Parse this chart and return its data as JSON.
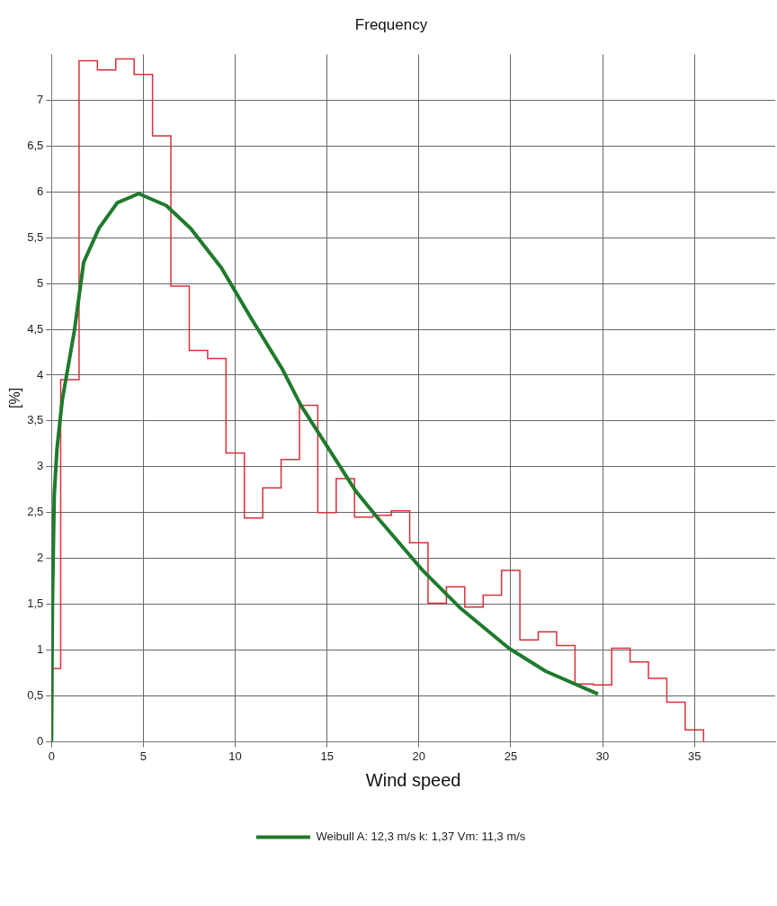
{
  "chart_data": {
    "type": "histogram",
    "title": "Frequency",
    "xlabel": "Wind speed",
    "ylabel": "[%]",
    "bins": [
      0,
      0.5,
      1.5,
      2.5,
      3.5,
      4.5,
      5.5,
      6.5,
      7.5,
      8.5,
      9.5,
      10.5,
      11.5,
      12.5,
      13.5,
      14.5,
      15.5,
      16.5,
      17.5,
      18.5,
      19.5,
      20.5,
      21.5,
      22.5,
      23.5,
      24.5,
      25.5,
      26.5,
      27.5,
      28.5,
      29.5,
      30.5,
      31.5,
      32.5,
      33.5,
      34.5,
      35.5
    ],
    "values": [
      0.8,
      3.95,
      7.43,
      7.33,
      7.45,
      7.28,
      6.61,
      4.97,
      4.27,
      4.18,
      3.15,
      2.44,
      2.77,
      3.08,
      3.67,
      2.5,
      2.87,
      2.45,
      2.47,
      2.52,
      2.17,
      1.51,
      1.69,
      1.47,
      1.6,
      1.87,
      1.11,
      1.2,
      1.05,
      0.63,
      0.62,
      1.02,
      0.87,
      0.69,
      0.43,
      0.13
    ],
    "color": "#d8303c",
    "series": [
      {
        "type": "line",
        "name": "Weibull A: 12,3 m/s k: 1,37 Vm: 11,3 m/s",
        "color": "#1f7a2c",
        "x": [
          0,
          0.05,
          0.15,
          0.3,
          0.58,
          1.25,
          1.75,
          2.58,
          3.58,
          4.75,
          6.25,
          7.58,
          9.25,
          10.9,
          12.58,
          13.58,
          16.58,
          17.6,
          20.25,
          22.25,
          24.9,
          26.9,
          29.75
        ],
        "values": [
          0,
          1.5,
          2.7,
          3.2,
          3.72,
          4.49,
          5.23,
          5.6,
          5.88,
          5.98,
          5.85,
          5.6,
          5.17,
          4.61,
          4.06,
          3.67,
          2.73,
          2.48,
          1.86,
          1.46,
          1.02,
          0.77,
          0.52
        ]
      }
    ],
    "xlim": [
      0,
      39.4
    ],
    "xticks": [
      0,
      5,
      10,
      15,
      20,
      25,
      30,
      35
    ],
    "ylim": [
      0,
      7.5
    ],
    "yticks": [
      0,
      {
        "value": 0.5,
        "label": "0,5"
      },
      1,
      {
        "value": 1.5,
        "label": "1,5"
      },
      2,
      {
        "value": 2.5,
        "label": "2,5"
      },
      3,
      {
        "value": 3.5,
        "label": "3,5"
      },
      4,
      {
        "value": 4.5,
        "label": "4,5"
      },
      5,
      {
        "value": 5.5,
        "label": "5,5"
      },
      6,
      {
        "value": 6.5,
        "label": "6,5"
      },
      7
    ],
    "grid": true,
    "legend": "bottom",
    "marker": "none",
    "line_style": "solid"
  }
}
